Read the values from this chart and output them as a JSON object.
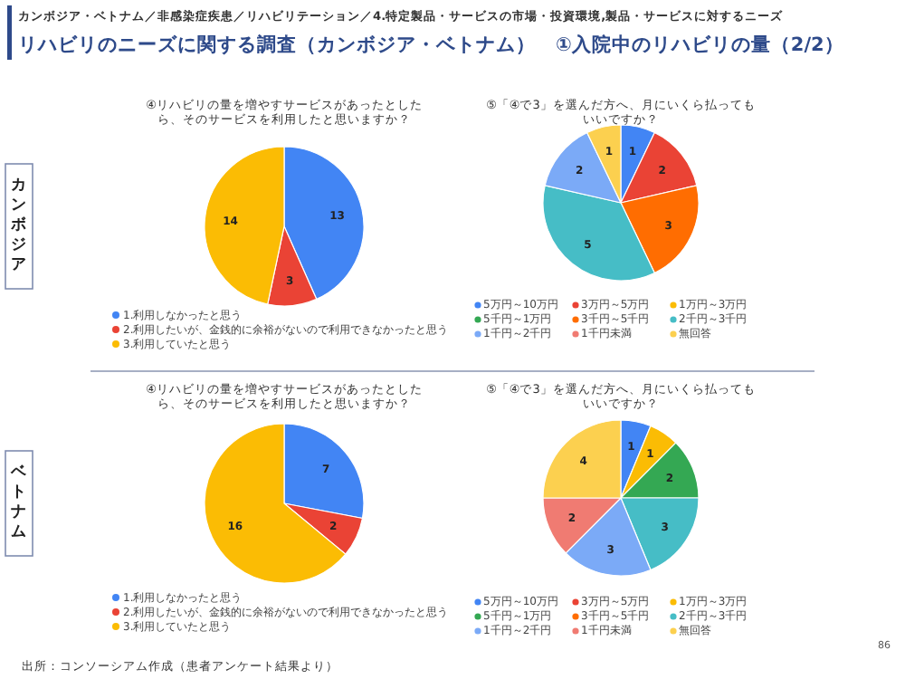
{
  "chart_data": [
    {
      "type": "pie",
      "title": "④リハビリの量を増やすサービスがあったとしたら、そのサービスを利用したと思いますか？",
      "categories": [
        "1.利用しなかったと思う",
        "2.利用したいが、金銭的に余裕がないので利用できなかったと思う",
        "3.利用していたと思う"
      ],
      "values": [
        13,
        3,
        14
      ],
      "colors": [
        "#4285f4",
        "#ea4335",
        "#fbbc04"
      ],
      "data_labels": true,
      "legend": "bottom",
      "annotations": [
        "カンボジア・ベトナム／非感染症疾患／リハビリテーション／4.特定製品・サービスの市場・投資環境,製品・サービスに対するニーズ",
        "リハビリのニーズに関する調査（カンボジア・ベトナム）　①入院中のリハビリの量（2/2）",
        "カンボジア"
      ]
    },
    {
      "type": "pie",
      "title": "⑤「④で3」を選んだ方へ、月にいくら払ってもいいですか？",
      "categories": [
        "5万円～10万円",
        "3万円～5万円",
        "1万円～3万円",
        "5千円～1万円",
        "3千円～5千円",
        "2千円～3千円",
        "1千円～2千円",
        "1千円未満",
        "無回答"
      ],
      "values": [
        1,
        2,
        0,
        0,
        3,
        5,
        2,
        0,
        1
      ],
      "colors": [
        "#4285f4",
        "#ea4335",
        "#fbbc04",
        "#34a853",
        "#ff6d01",
        "#46bdc6",
        "#7baaf7",
        "#f07b72",
        "#fcd04f"
      ],
      "data_labels": true,
      "legend": "bottom"
    },
    {
      "type": "pie",
      "title": "④リハビリの量を増やすサービスがあったとしたら、そのサービスを利用したと思いますか？",
      "categories": [
        "1.利用しなかったと思う",
        "2.利用したいが、金銭的に余裕がないので利用できなかったと思う",
        "3.利用していたと思う"
      ],
      "values": [
        7,
        2,
        16
      ],
      "colors": [
        "#4285f4",
        "#ea4335",
        "#fbbc04"
      ],
      "data_labels": true,
      "legend": "bottom",
      "annotations": [
        "ベトナム"
      ]
    },
    {
      "type": "pie",
      "title": "⑤「④で3」を選んだ方へ、月にいくら払ってもいいですか？",
      "categories": [
        "5万円～10万円",
        "3万円～5万円",
        "1万円～3万円",
        "5千円～1万円",
        "3千円～5千円",
        "2千円～3千円",
        "1千円～2千円",
        "1千円未満",
        "無回答"
      ],
      "values": [
        1,
        0,
        1,
        2,
        0,
        3,
        3,
        2,
        4
      ],
      "colors": [
        "#4285f4",
        "#ea4335",
        "#fbbc04",
        "#34a853",
        "#ff6d01",
        "#46bdc6",
        "#7baaf7",
        "#f07b72",
        "#fcd04f"
      ],
      "data_labels": true,
      "legend": "bottom",
      "annotations": [
        "出所：コンソーシアム作成（患者アンケート結果より）",
        "86"
      ]
    }
  ]
}
